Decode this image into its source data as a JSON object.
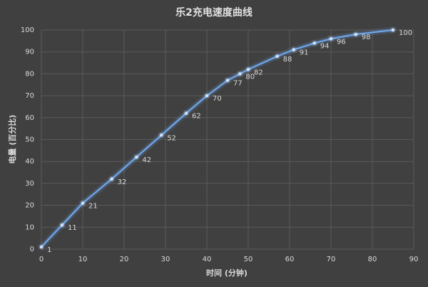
{
  "chart_data": {
    "type": "line",
    "title": "乐2充电速度曲线",
    "x_label": "时间 (分钟)",
    "y_label": "电量 (百分比)",
    "x": [
      0,
      5,
      10,
      17,
      23,
      29,
      35,
      40,
      45,
      48,
      50,
      57,
      61,
      66,
      70,
      76,
      85
    ],
    "series": [
      {
        "name": "电量",
        "color": "#6fa8ef",
        "values": [
          1,
          11,
          21,
          32,
          42,
          52,
          62,
          70,
          77,
          80,
          82,
          88,
          91,
          94,
          96,
          98,
          100
        ]
      }
    ],
    "xlim": [
      0,
      90
    ],
    "xticks": [
      0,
      10,
      20,
      30,
      40,
      50,
      60,
      70,
      80,
      90
    ],
    "ylim": [
      0,
      100
    ],
    "yticks": [
      0,
      10,
      20,
      30,
      40,
      50,
      60,
      70,
      80,
      90,
      100
    ],
    "grid": true
  }
}
